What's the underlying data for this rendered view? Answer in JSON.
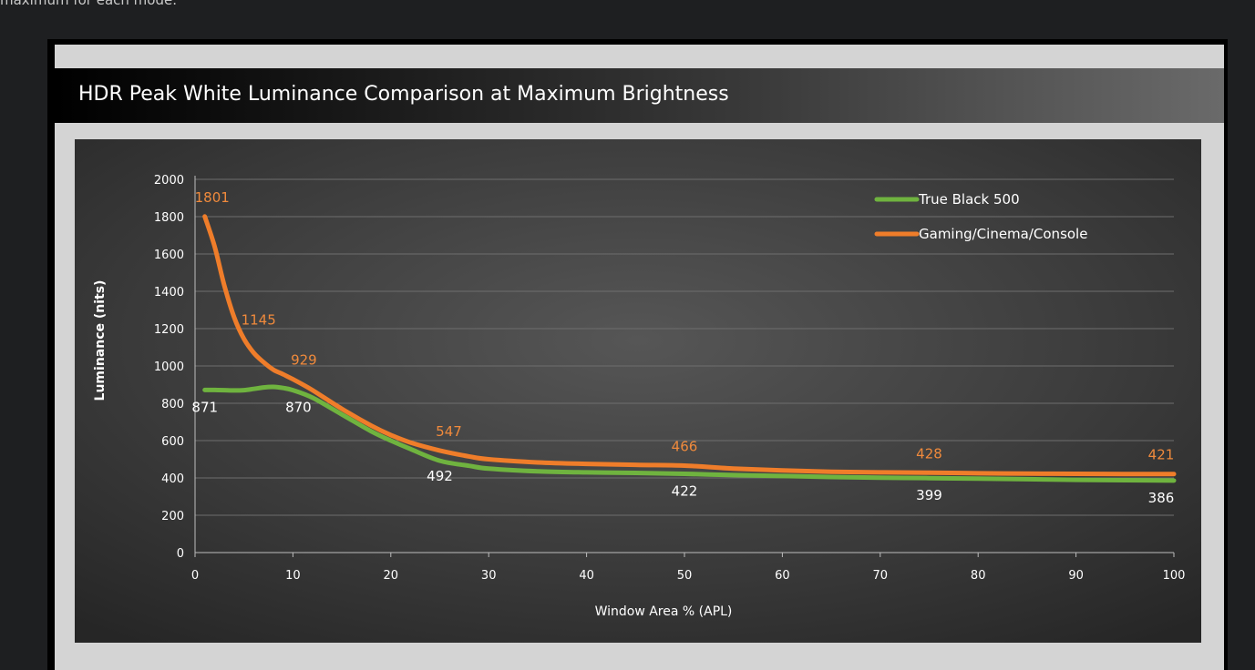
{
  "page": {
    "top_text": "maximum for each mode."
  },
  "chart_data": {
    "type": "line",
    "title": "HDR Peak White Luminance Comparison at Maximum Brightness",
    "xlabel": "Window Area % (APL)",
    "ylabel": "Luminance (nits)",
    "xlim": [
      0,
      100
    ],
    "ylim": [
      0,
      2000
    ],
    "x_ticks": [
      "0",
      "10",
      "20",
      "30",
      "40",
      "50",
      "60",
      "70",
      "80",
      "90",
      "100"
    ],
    "y_ticks": [
      "0",
      "200",
      "400",
      "600",
      "800",
      "1000",
      "1200",
      "1400",
      "1600",
      "1800",
      "2000"
    ],
    "grid": true,
    "legend_position": "top-right",
    "series": [
      {
        "name": "True Black 500",
        "color": "#6fb33f",
        "x": [
          1,
          2,
          3,
          4,
          5,
          6,
          7,
          8,
          9,
          10,
          12,
          15,
          18,
          20,
          22,
          25,
          28,
          30,
          35,
          40,
          45,
          50,
          55,
          60,
          65,
          70,
          75,
          80,
          85,
          90,
          95,
          100
        ],
        "y": [
          871,
          871,
          870,
          869,
          870,
          877,
          885,
          888,
          882,
          870,
          830,
          740,
          650,
          600,
          555,
          492,
          465,
          450,
          435,
          430,
          427,
          422,
          415,
          410,
          405,
          401,
          399,
          396,
          393,
          390,
          388,
          386
        ],
        "labels": [
          {
            "x": 1,
            "y": 871,
            "text": "871"
          },
          {
            "x": 10,
            "y": 870,
            "text": "870"
          },
          {
            "x": 25,
            "y": 492,
            "text": "492"
          },
          {
            "x": 50,
            "y": 422,
            "text": "422"
          },
          {
            "x": 75,
            "y": 399,
            "text": "399"
          },
          {
            "x": 100,
            "y": 386,
            "text": "386"
          }
        ]
      },
      {
        "name": "Gaming/Cinema/Console",
        "color": "#ef7d2a",
        "x": [
          1,
          2,
          3,
          4,
          5,
          6,
          7,
          8,
          9,
          10,
          12,
          15,
          18,
          20,
          22,
          25,
          28,
          30,
          35,
          40,
          45,
          50,
          55,
          60,
          65,
          70,
          75,
          80,
          85,
          90,
          95,
          100
        ],
        "y": [
          1801,
          1640,
          1430,
          1260,
          1145,
          1070,
          1020,
          980,
          955,
          929,
          870,
          770,
          680,
          630,
          590,
          547,
          515,
          500,
          483,
          475,
          470,
          466,
          450,
          440,
          433,
          430,
          428,
          425,
          423,
          422,
          421,
          421
        ],
        "labels": [
          {
            "x": 1,
            "y": 1801,
            "text": "1801"
          },
          {
            "x": 5,
            "y": 1145,
            "text": "1145"
          },
          {
            "x": 10,
            "y": 929,
            "text": "929"
          },
          {
            "x": 25,
            "y": 547,
            "text": "547"
          },
          {
            "x": 50,
            "y": 466,
            "text": "466"
          },
          {
            "x": 75,
            "y": 428,
            "text": "428"
          },
          {
            "x": 100,
            "y": 421,
            "text": "421"
          }
        ]
      }
    ]
  }
}
